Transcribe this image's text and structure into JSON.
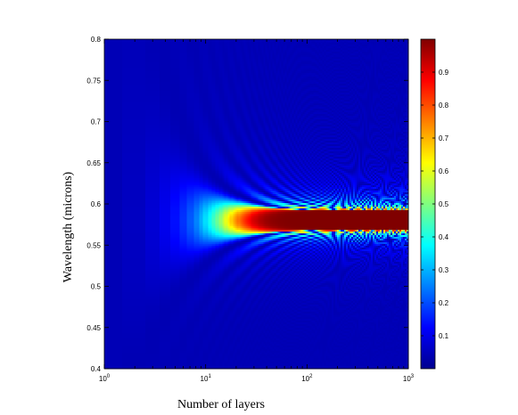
{
  "chart_data": {
    "type": "heatmap",
    "title": "",
    "xlabel": "Number of layers",
    "ylabel": "Wavelength (microns)",
    "x_scale": "log",
    "x_range": [
      1,
      1000
    ],
    "y_range": [
      0.4,
      0.8
    ],
    "x_ticks": [
      {
        "value": 1,
        "base": "10",
        "exp": "0"
      },
      {
        "value": 10,
        "base": "10",
        "exp": "1"
      },
      {
        "value": 100,
        "base": "10",
        "exp": "2"
      },
      {
        "value": 1000,
        "base": "10",
        "exp": "3"
      }
    ],
    "y_ticks": [
      "0.4",
      "0.45",
      "0.5",
      "0.55",
      "0.6",
      "0.65",
      "0.7",
      "0.75",
      "0.8"
    ],
    "colorbar": {
      "range": [
        0,
        1
      ],
      "ticks": [
        "0.1",
        "0.2",
        "0.3",
        "0.4",
        "0.5",
        "0.6",
        "0.7",
        "0.8",
        "0.9"
      ],
      "colormap": "jet"
    },
    "stopband": {
      "center_wavelength": 0.58,
      "high_reflectance_band": [
        0.565,
        0.598
      ],
      "max_reflectance": 1.0
    },
    "grid": false,
    "legend": "colorbar-right"
  }
}
